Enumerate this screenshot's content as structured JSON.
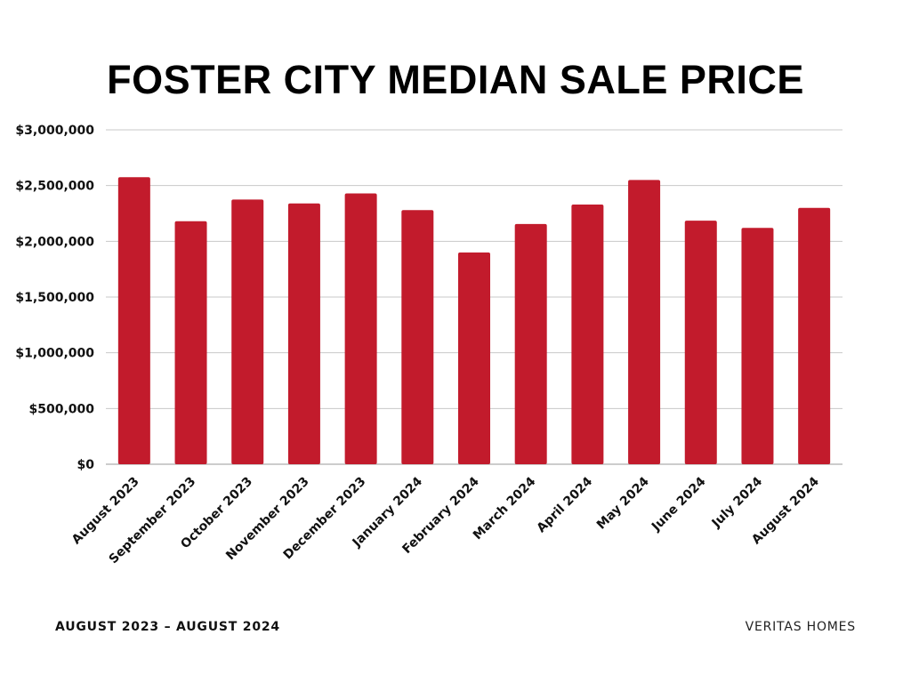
{
  "colors": {
    "bar": "#c21b2c",
    "grid": "#c8c8c8",
    "axis": "#999999"
  },
  "footer": {
    "left": "AUGUST 2023 – AUGUST 2024",
    "right": "VERITAS HOMES"
  },
  "chart_data": {
    "type": "bar",
    "title": "FOSTER CITY MEDIAN SALE PRICE",
    "xlabel": "",
    "ylabel": "",
    "ylim": [
      0,
      3000000
    ],
    "grid": true,
    "y_ticks": [
      0,
      500000,
      1000000,
      1500000,
      2000000,
      2500000,
      3000000
    ],
    "y_tick_labels": [
      "$0",
      "$500,000",
      "$1,000,000",
      "$1,500,000",
      "$2,000,000",
      "$2,500,000",
      "$3,000,000"
    ],
    "categories": [
      "August 2023",
      "September 2023",
      "October 2023",
      "November 2023",
      "December 2023",
      "January 2024",
      "February 2024",
      "March 2024",
      "April 2024",
      "May 2024",
      "June 2024",
      "July 2024",
      "August 2024"
    ],
    "values": [
      2575000,
      2180000,
      2375000,
      2340000,
      2430000,
      2280000,
      1900000,
      2155000,
      2330000,
      2550000,
      2185000,
      2120000,
      2300000
    ]
  }
}
